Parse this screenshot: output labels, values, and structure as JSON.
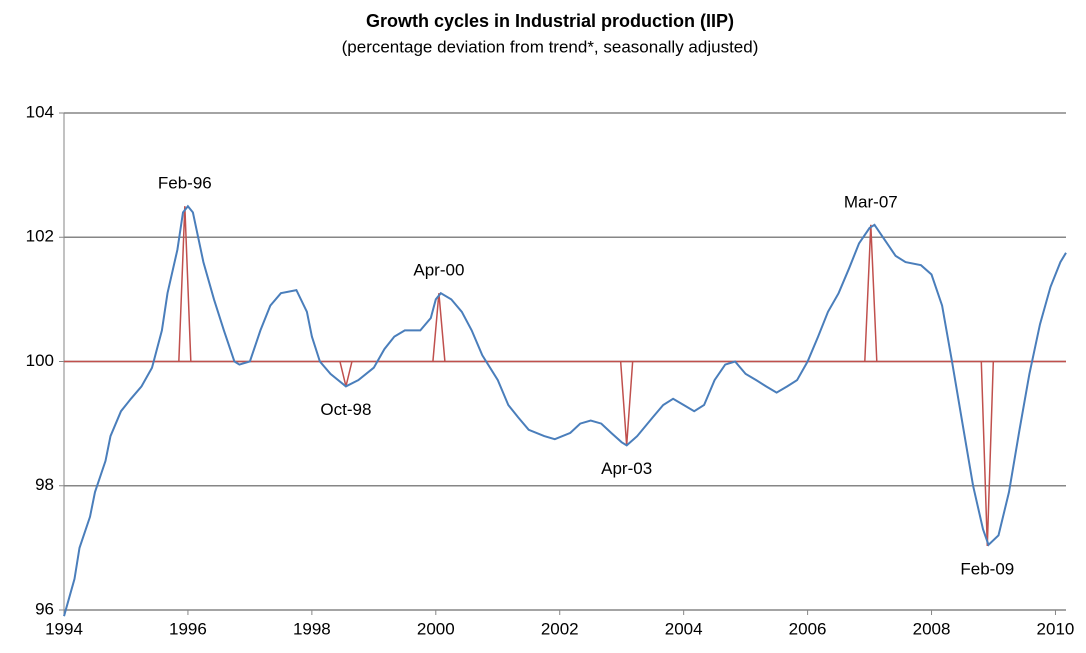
{
  "chart_data": {
    "type": "line",
    "title": "Growth cycles in Industrial production (IIP)",
    "subtitle": "(percentage deviation from trend*, seasonally adjusted)",
    "color": "#4a7ebb",
    "reference_color": "#c0504d",
    "reference_line": 100,
    "x": [
      1994.0,
      1994.17,
      1994.25,
      1994.42,
      1994.5,
      1994.67,
      1994.75,
      1994.92,
      1995.08,
      1995.25,
      1995.42,
      1995.58,
      1995.67,
      1995.83,
      1995.92,
      1996.0,
      1996.08,
      1996.25,
      1996.42,
      1996.58,
      1996.75,
      1996.83,
      1997.0,
      1997.17,
      1997.33,
      1997.5,
      1997.75,
      1997.92,
      1998.0,
      1998.13,
      1998.3,
      1998.55,
      1998.75,
      1999.0,
      1999.17,
      1999.33,
      1999.5,
      1999.75,
      1999.92,
      2000.0,
      2000.08,
      2000.25,
      2000.42,
      2000.58,
      2000.75,
      2001.0,
      2001.17,
      2001.33,
      2001.5,
      2001.75,
      2001.92,
      2002.17,
      2002.33,
      2002.5,
      2002.67,
      2002.83,
      2003.0,
      2003.08,
      2003.25,
      2003.5,
      2003.67,
      2003.83,
      2004.0,
      2004.17,
      2004.33,
      2004.5,
      2004.67,
      2004.83,
      2005.0,
      2005.17,
      2005.33,
      2005.5,
      2005.67,
      2005.83,
      2006.0,
      2006.17,
      2006.33,
      2006.5,
      2006.67,
      2006.83,
      2007.0,
      2007.08,
      2007.25,
      2007.42,
      2007.58,
      2007.83,
      2008.0,
      2008.17,
      2008.33,
      2008.5,
      2008.67,
      2008.83,
      2008.92,
      2009.08,
      2009.25,
      2009.42,
      2009.58,
      2009.75,
      2009.92,
      2010.08,
      2010.17
    ],
    "values": [
      95.9,
      96.5,
      97.0,
      97.5,
      97.9,
      98.4,
      98.8,
      99.2,
      99.4,
      99.6,
      99.9,
      100.5,
      101.1,
      101.8,
      102.4,
      102.5,
      102.4,
      101.6,
      101.0,
      100.5,
      100.0,
      99.95,
      100.0,
      100.5,
      100.9,
      101.1,
      101.15,
      100.8,
      100.4,
      100.0,
      99.8,
      99.6,
      99.7,
      99.9,
      100.2,
      100.4,
      100.5,
      100.5,
      100.7,
      101.0,
      101.1,
      101.0,
      100.8,
      100.5,
      100.1,
      99.7,
      99.3,
      99.1,
      98.9,
      98.8,
      98.75,
      98.85,
      99.0,
      99.05,
      99.0,
      98.85,
      98.7,
      98.65,
      98.8,
      99.1,
      99.3,
      99.4,
      99.3,
      99.2,
      99.3,
      99.7,
      99.95,
      100.0,
      99.8,
      99.7,
      99.6,
      99.5,
      99.6,
      99.7,
      100.0,
      100.4,
      100.8,
      101.1,
      101.5,
      101.9,
      102.15,
      102.2,
      101.95,
      101.7,
      101.6,
      101.55,
      101.4,
      100.9,
      100.0,
      99.0,
      98.0,
      97.3,
      97.05,
      97.2,
      97.9,
      98.9,
      99.8,
      100.6,
      101.2,
      101.6,
      101.75
    ],
    "annotations": [
      {
        "label": "Feb-96",
        "x": 1995.95,
        "y": 102.5
      },
      {
        "label": "Oct-98",
        "x": 1998.55,
        "y": 99.6
      },
      {
        "label": "Apr-00",
        "x": 2000.05,
        "y": 101.1
      },
      {
        "label": "Apr-03",
        "x": 2003.08,
        "y": 98.65
      },
      {
        "label": "Mar-07",
        "x": 2007.02,
        "y": 102.2
      },
      {
        "label": "Feb-09",
        "x": 2008.9,
        "y": 97.03
      }
    ],
    "xlim": [
      1994,
      2010.17
    ],
    "xticks": [
      1994,
      1996,
      1998,
      2000,
      2002,
      2004,
      2006,
      2008,
      2010
    ],
    "ylim": [
      96,
      104
    ],
    "yticks": [
      96,
      98,
      100,
      102,
      104
    ],
    "grid": true
  }
}
